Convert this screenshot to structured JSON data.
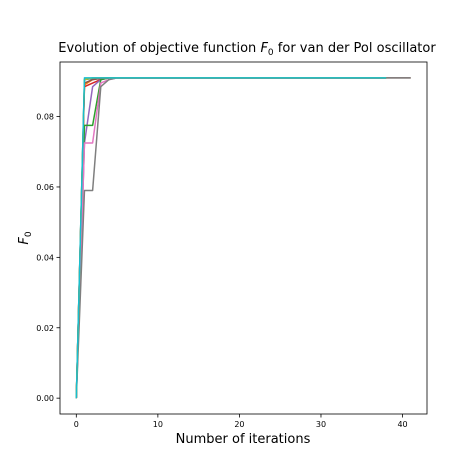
{
  "chart_data": {
    "type": "line",
    "title": {
      "prefix": "Evolution of objective function ",
      "symbol": "F",
      "subscript": "0",
      "suffix": " for van der Pol oscillator"
    },
    "xlabel": "Number of iterations",
    "ylabel": {
      "symbol": "F",
      "subscript": "0"
    },
    "xlim": [
      -2,
      43
    ],
    "ylim": [
      -0.0045,
      0.0955
    ],
    "xticks": [
      0,
      10,
      20,
      30,
      40
    ],
    "yticks": [
      0.0,
      0.02,
      0.04,
      0.06,
      0.08
    ],
    "yticklabels": [
      "0.00",
      "0.02",
      "0.04",
      "0.06",
      "0.08"
    ],
    "grid": false,
    "series": [
      {
        "color": "#1f77b4",
        "x": [
          0,
          1,
          2,
          3,
          4,
          5,
          6,
          38
        ],
        "y": [
          0,
          0.0905,
          0.0908,
          0.0909,
          0.091,
          0.091,
          0.091,
          0.091
        ]
      },
      {
        "color": "#ff7f0e",
        "x": [
          0,
          1,
          2,
          3,
          4,
          5,
          6,
          38
        ],
        "y": [
          0,
          0.089,
          0.0905,
          0.091,
          0.091,
          0.091,
          0.091,
          0.091
        ]
      },
      {
        "color": "#d62728",
        "x": [
          0,
          1,
          2,
          3,
          4,
          5,
          6,
          38
        ],
        "y": [
          0,
          0.0885,
          0.0895,
          0.0905,
          0.091,
          0.091,
          0.091,
          0.091
        ]
      },
      {
        "color": "#9467bd",
        "x": [
          0,
          1,
          2,
          3,
          4,
          5,
          6,
          38
        ],
        "y": [
          0,
          0.0725,
          0.0885,
          0.0905,
          0.091,
          0.091,
          0.091,
          0.091
        ]
      },
      {
        "color": "#2ca02c",
        "x": [
          0,
          1,
          2,
          3,
          4,
          5,
          6,
          38
        ],
        "y": [
          0,
          0.0775,
          0.0775,
          0.0905,
          0.091,
          0.091,
          0.091,
          0.091
        ]
      },
      {
        "color": "#8c564b",
        "x": [
          0,
          1,
          2,
          3,
          4,
          5,
          6,
          41
        ],
        "y": [
          0,
          0.0895,
          0.0905,
          0.0908,
          0.091,
          0.091,
          0.091,
          0.091
        ]
      },
      {
        "color": "#e377c2",
        "x": [
          0,
          1,
          2,
          3,
          4,
          5,
          6,
          38
        ],
        "y": [
          0,
          0.0725,
          0.0725,
          0.0895,
          0.0905,
          0.091,
          0.091,
          0.091
        ]
      },
      {
        "color": "#7f7f7f",
        "x": [
          0,
          1,
          2,
          3,
          4,
          5,
          6,
          41
        ],
        "y": [
          0,
          0.059,
          0.059,
          0.0885,
          0.0905,
          0.091,
          0.091,
          0.091
        ]
      },
      {
        "color": "#bcbd22",
        "x": [
          0,
          1,
          2,
          3,
          4,
          5,
          6,
          38
        ],
        "y": [
          0,
          0.0905,
          0.091,
          0.091,
          0.091,
          0.091,
          0.091,
          0.091
        ]
      },
      {
        "color": "#17becf",
        "x": [
          0,
          1,
          2,
          3,
          4,
          5,
          6,
          38
        ],
        "y": [
          0,
          0.091,
          0.091,
          0.091,
          0.091,
          0.091,
          0.091,
          0.091
        ]
      }
    ]
  }
}
